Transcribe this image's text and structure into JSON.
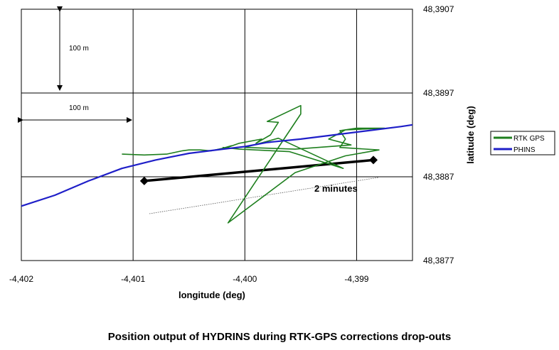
{
  "caption": "Position output of HYDRINS during RTK-GPS corrections drop-outs",
  "chart_data": {
    "type": "line",
    "xlabel": "longitude (deg)",
    "ylabel": "latitude (deg)",
    "xlim": [
      -4.402,
      -4.3985
    ],
    "ylim": [
      48.3877,
      48.3907
    ],
    "x_ticks": [
      "-4,402",
      "-4,401",
      "-4,400",
      "-4,399"
    ],
    "y_ticks": [
      "48,3877",
      "48,3887",
      "48,3897",
      "48,3907"
    ],
    "grid": true,
    "legend_position": "right",
    "series": [
      {
        "name": "RTK GPS",
        "color": "#1e7f1e",
        "points": [
          [
            -4.4011,
            48.38897
          ],
          [
            -4.4009,
            48.38896
          ],
          [
            -4.4007,
            48.38897
          ],
          [
            -4.40056,
            48.38901
          ],
          [
            -4.4005,
            48.38902
          ],
          [
            -4.4004,
            48.38902
          ],
          [
            -4.4003,
            48.38901
          ],
          [
            -4.4002,
            48.38904
          ],
          [
            -4.40012,
            48.38907
          ],
          [
            -4.4002,
            48.38903
          ],
          [
            -4.40005,
            48.3891
          ],
          [
            -4.39985,
            48.38915
          ],
          [
            -4.3999,
            48.3891
          ],
          [
            -4.39977,
            48.3892
          ],
          [
            -4.3997,
            48.38935
          ],
          [
            -4.3998,
            48.38936
          ],
          [
            -4.3995,
            48.38955
          ],
          [
            -4.3995,
            48.38945
          ],
          [
            -4.39975,
            48.38895
          ],
          [
            -4.40015,
            48.38815
          ],
          [
            -4.39955,
            48.38875
          ],
          [
            -4.3991,
            48.38895
          ],
          [
            -4.3988,
            48.38902
          ],
          [
            -4.39915,
            48.38905
          ],
          [
            -4.3991,
            48.38915
          ],
          [
            -4.39915,
            48.38925
          ],
          [
            -4.399,
            48.38928
          ],
          [
            -4.39875,
            48.38928
          ],
          [
            -4.3991,
            48.38926
          ],
          [
            -4.39925,
            48.38915
          ],
          [
            -4.39905,
            48.38908
          ],
          [
            -4.39955,
            48.38903
          ],
          [
            -4.4,
            48.38905
          ],
          [
            -4.3997,
            48.38916
          ],
          [
            -4.39912,
            48.3888
          ],
          [
            -4.3996,
            48.389
          ],
          [
            -4.40005,
            48.38903
          ],
          [
            -4.4002,
            48.38905
          ]
        ]
      },
      {
        "name": "PHINS",
        "color": "#1f1fc8",
        "points": [
          [
            -4.402,
            48.38835
          ],
          [
            -4.4017,
            48.38848
          ],
          [
            -4.4014,
            48.38865
          ],
          [
            -4.4011,
            48.3888
          ],
          [
            -4.4008,
            48.3889
          ],
          [
            -4.4005,
            48.38898
          ],
          [
            -4.4002,
            48.38903
          ],
          [
            -4.4,
            48.38906
          ],
          [
            -4.3998,
            48.38911
          ],
          [
            -4.3995,
            48.38915
          ],
          [
            -4.3992,
            48.3892
          ],
          [
            -4.3989,
            48.38925
          ],
          [
            -4.3986,
            48.3893
          ],
          [
            -4.3985,
            48.38932
          ]
        ]
      }
    ],
    "annotations": {
      "scale_vertical": "100 m",
      "scale_horizontal": "100 m",
      "interval_label": "2 minutes",
      "interval_segment": [
        [
          -4.4009,
          48.38865
        ],
        [
          -4.39885,
          48.3889
        ]
      ]
    }
  }
}
